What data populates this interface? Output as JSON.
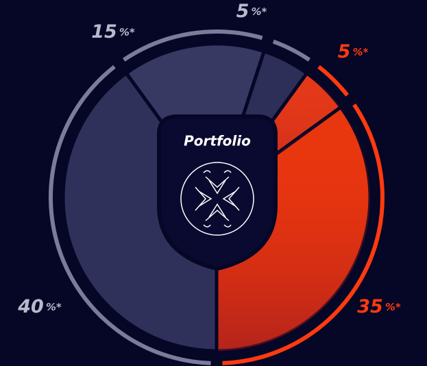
{
  "chart_data": {
    "type": "pie",
    "title": "Portfolio",
    "categories": [
      null,
      null,
      null,
      null,
      null
    ],
    "values": [
      5,
      35,
      40,
      15,
      5
    ],
    "value_suffix": "%*",
    "colors": [
      "#e2391a",
      "#e8360f",
      "#30315a",
      "#383963",
      "#2e2f58"
    ],
    "ring_colors": [
      "#ff3a10",
      "#ff3a10",
      "#7b7b9c",
      "#7b7b9c",
      "#7b7b9c"
    ],
    "label_colors": [
      "#ff3a10",
      "#ff3a10",
      "#b9b9cc",
      "#b9b9cc",
      "#b9b9cc"
    ]
  }
}
